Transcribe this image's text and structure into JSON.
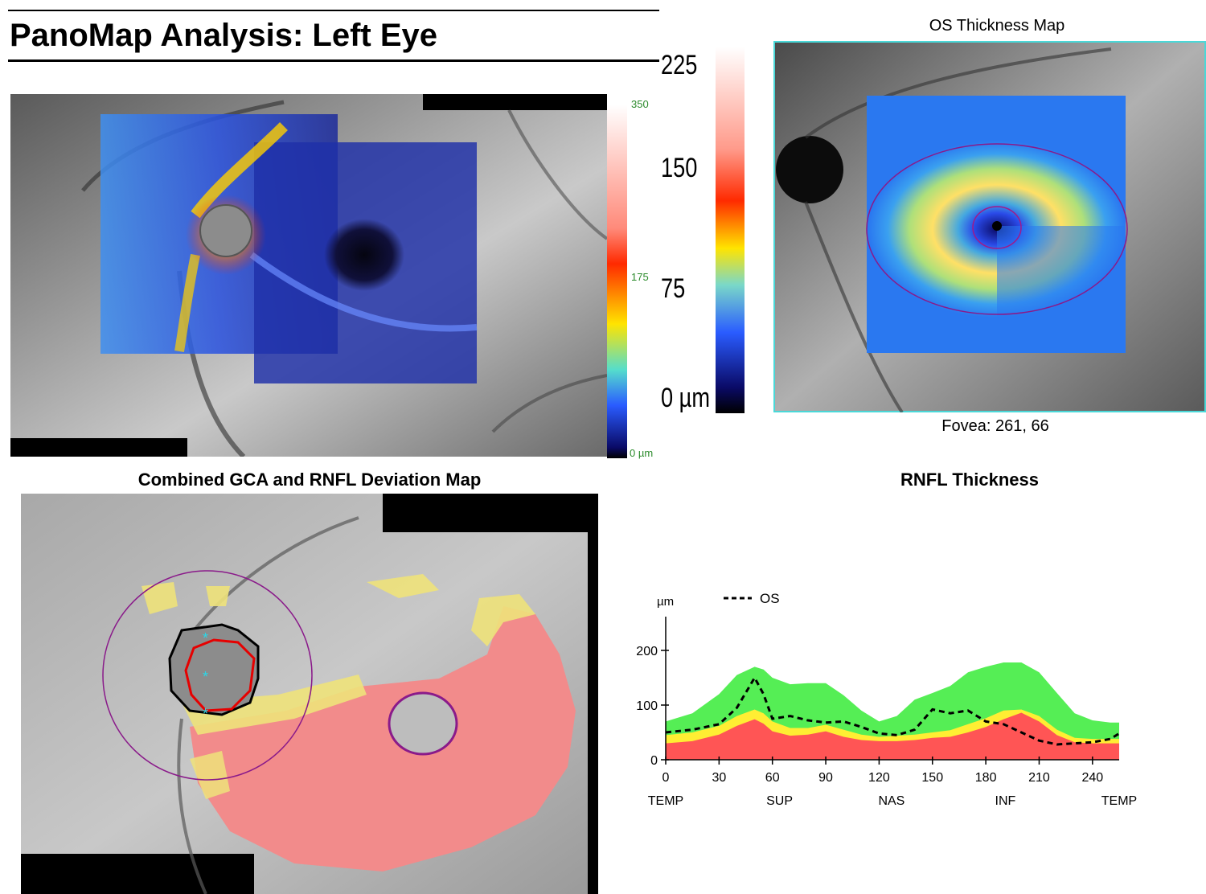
{
  "page": {
    "title": "PanoMap Analysis: Left Eye"
  },
  "panorama": {
    "scale_small": {
      "top": "350",
      "mid": "175",
      "bottom": "0 µm"
    },
    "scale_large": {
      "labels": [
        "225",
        "150",
        "75",
        "0 µm"
      ]
    },
    "colors": {
      "hot": "#ff2a00",
      "warm": "#ffe400",
      "cool": "#2a5cff",
      "deep": "#0a0a66"
    }
  },
  "thickness_map": {
    "title": "OS Thickness Map",
    "fovea_label": "Fovea: 261, 66",
    "frame_color": "#4ad8d8"
  },
  "deviation_map": {
    "title": "Combined GCA and RNFL Deviation Map",
    "colors": {
      "red_zone": "#f28b8b",
      "yellow_zone": "#eee27a",
      "circle": "#8a1a8a"
    }
  },
  "rnfl": {
    "title": "RNFL Thickness",
    "legend_os": "OS",
    "unit": "µm",
    "chart_data": {
      "type": "area",
      "title": "RNFL Thickness",
      "ylabel": "µm",
      "xlabel": "",
      "xlim": [
        0,
        255
      ],
      "ylim": [
        0,
        250
      ],
      "x_ticks": [
        0,
        30,
        60,
        90,
        120,
        150,
        180,
        210,
        240
      ],
      "y_ticks": [
        0,
        100,
        200
      ],
      "sector_labels": [
        "TEMP",
        "SUP",
        "NAS",
        "INF",
        "TEMP"
      ],
      "sector_positions": [
        0,
        64,
        127,
        191,
        255
      ],
      "x": [
        0,
        15,
        30,
        40,
        50,
        55,
        60,
        70,
        80,
        90,
        100,
        110,
        120,
        130,
        140,
        150,
        160,
        170,
        180,
        190,
        200,
        210,
        220,
        230,
        240,
        250,
        255
      ],
      "bands": [
        {
          "name": "normal-upper",
          "color": "#55ee55",
          "values": [
            70,
            85,
            120,
            155,
            170,
            165,
            150,
            138,
            140,
            140,
            118,
            90,
            70,
            80,
            110,
            122,
            135,
            160,
            170,
            178,
            178,
            160,
            122,
            85,
            72,
            68,
            68
          ]
        },
        {
          "name": "borderline-upper",
          "color": "#ffee33",
          "values": [
            45,
            50,
            62,
            80,
            92,
            85,
            70,
            58,
            58,
            64,
            55,
            46,
            42,
            44,
            46,
            50,
            54,
            65,
            76,
            90,
            92,
            80,
            55,
            40,
            38,
            38,
            38
          ]
        },
        {
          "name": "abnormal-upper",
          "color": "#ff5555",
          "values": [
            30,
            34,
            46,
            62,
            74,
            66,
            52,
            44,
            46,
            52,
            42,
            36,
            34,
            34,
            36,
            40,
            42,
            50,
            60,
            74,
            86,
            70,
            45,
            32,
            30,
            30,
            30
          ]
        }
      ],
      "series": [
        {
          "name": "OS",
          "style": "dashed",
          "color": "#000000",
          "values": [
            50,
            55,
            65,
            95,
            150,
            120,
            75,
            80,
            72,
            68,
            70,
            60,
            48,
            45,
            55,
            92,
            85,
            90,
            70,
            65,
            50,
            35,
            28,
            30,
            32,
            38,
            48
          ]
        }
      ]
    }
  }
}
